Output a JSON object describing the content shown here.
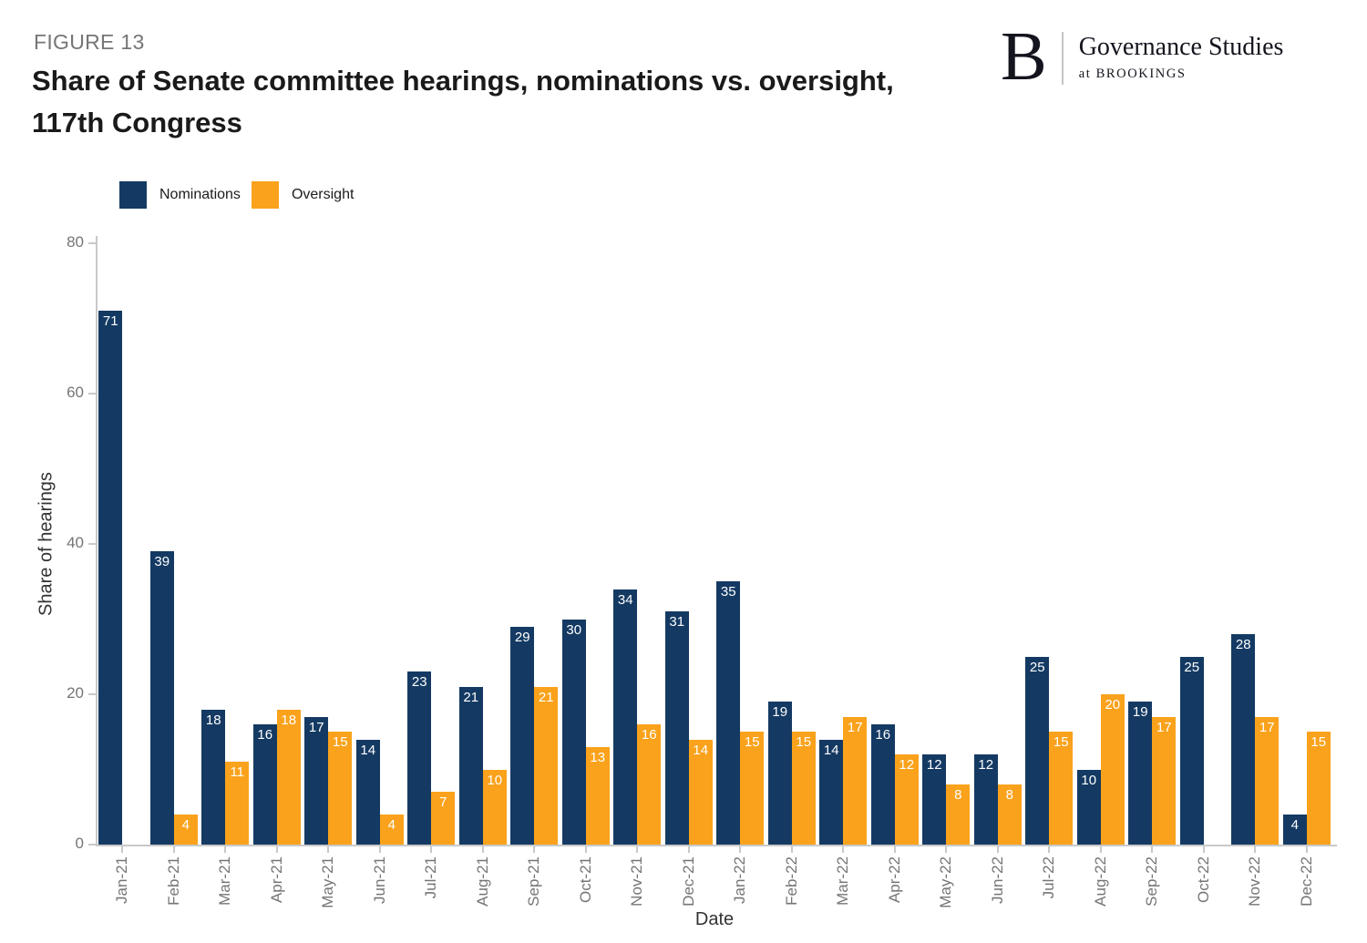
{
  "header": {
    "figure_label": "FIGURE 13",
    "title": "Share of Senate committee hearings, nominations vs. oversight, 117th Congress"
  },
  "logo": {
    "monogram": "B",
    "name": "Governance Studies",
    "tagline": "at BROOKINGS"
  },
  "legend": {
    "items": [
      {
        "label": "Nominations",
        "color": "#143A63"
      },
      {
        "label": "Oversight",
        "color": "#FAA21B"
      }
    ]
  },
  "chart_data": {
    "type": "bar",
    "title": "Share of Senate committee hearings, nominations vs. oversight, 117th Congress",
    "xlabel": "Date",
    "ylabel": "Share of hearings",
    "ylim": [
      0,
      80
    ],
    "yticks": [
      0,
      20,
      40,
      60,
      80
    ],
    "grid": false,
    "legend_position": "top-left",
    "bar_value_labels": true,
    "categories": [
      "Jan-21",
      "Feb-21",
      "Mar-21",
      "Apr-21",
      "May-21",
      "Jun-21",
      "Jul-21",
      "Aug-21",
      "Sep-21",
      "Oct-21",
      "Nov-21",
      "Dec-21",
      "Jan-22",
      "Feb-22",
      "Mar-22",
      "Apr-22",
      "May-22",
      "Jun-22",
      "Jul-22",
      "Aug-22",
      "Sep-22",
      "Oct-22",
      "Nov-22",
      "Dec-22"
    ],
    "series": [
      {
        "name": "Nominations",
        "color": "#143A63",
        "values": [
          71,
          39,
          18,
          16,
          17,
          14,
          23,
          21,
          29,
          30,
          34,
          31,
          35,
          19,
          14,
          16,
          12,
          12,
          25,
          10,
          19,
          25,
          28,
          4
        ]
      },
      {
        "name": "Oversight",
        "color": "#FAA21B",
        "values": [
          null,
          4,
          11,
          18,
          15,
          4,
          7,
          10,
          21,
          13,
          16,
          14,
          15,
          15,
          17,
          12,
          8,
          8,
          15,
          20,
          17,
          null,
          17,
          15
        ]
      }
    ]
  }
}
